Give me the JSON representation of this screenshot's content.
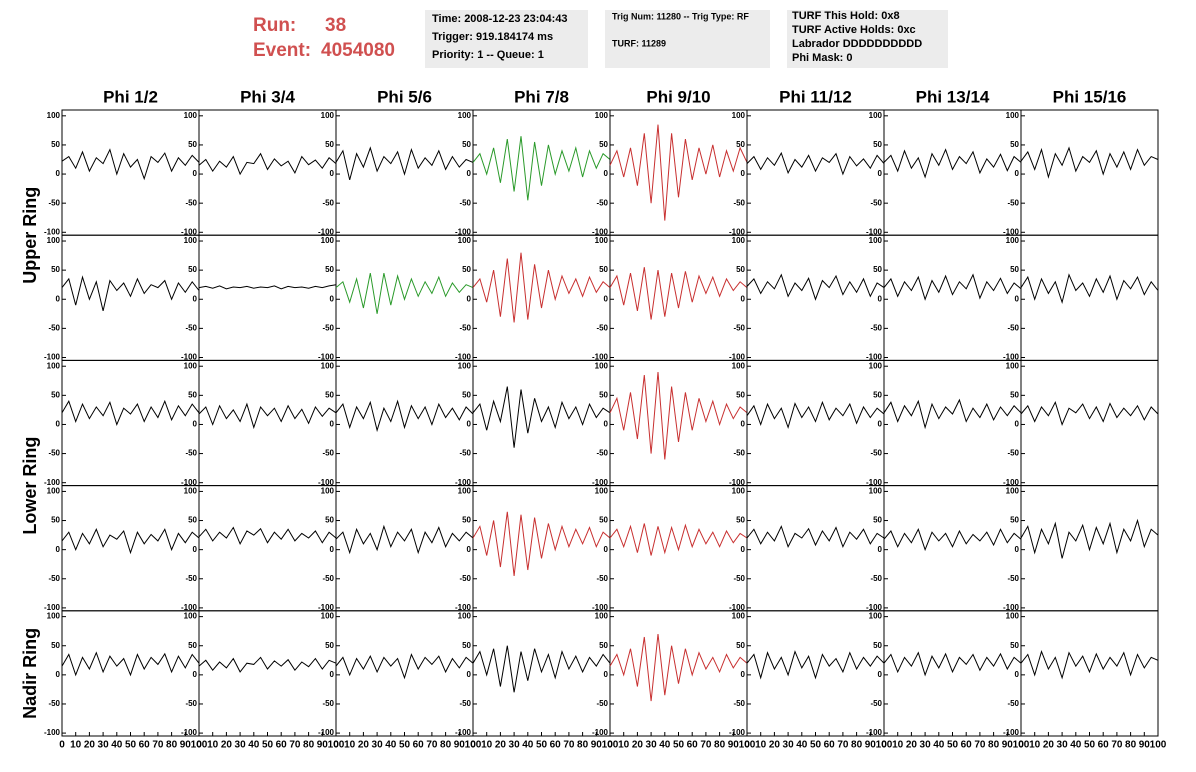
{
  "header": {
    "run_label": "Run:",
    "run": "38",
    "event_label": "Event:",
    "event": "4054080"
  },
  "info": [
    [
      "Time: 2008-12-23 23:04:43",
      "Trigger: 919.184174 ms",
      "Priority: 1 -- Queue: 1"
    ],
    [
      "Trig Num: 11280 -- Trig Type: RF",
      "TURF: 11289"
    ],
    [
      "TURF This Hold: 0x8",
      "TURF Active Holds: 0xc",
      "Labrador DDDDDDDDDD",
      "Phi Mask: 0"
    ]
  ],
  "chart_data": {
    "type": "line",
    "columns": [
      "Phi 1/2",
      "Phi 3/4",
      "Phi 5/6",
      "Phi 7/8",
      "Phi 9/10",
      "Phi 11/12",
      "Phi 13/14",
      "Phi 15/16"
    ],
    "rings": [
      "Upper Ring",
      "Lower Ring",
      "Nadir Ring"
    ],
    "xlim": [
      0,
      100
    ],
    "xticks": [
      0,
      10,
      20,
      30,
      40,
      50,
      60,
      70,
      80,
      90,
      100
    ],
    "ylim": [
      -105,
      110
    ],
    "yticks": [
      -100,
      -50,
      0,
      50,
      100
    ],
    "x": [
      0,
      5,
      10,
      15,
      20,
      25,
      30,
      35,
      40,
      45,
      50,
      55,
      60,
      65,
      70,
      75,
      80,
      85,
      90,
      95,
      100
    ],
    "panels": [
      [
        {
          "color": "#000000",
          "values": [
            22,
            30,
            10,
            38,
            5,
            28,
            18,
            42,
            0,
            35,
            12,
            25,
            -8,
            30,
            20,
            36,
            5,
            28,
            15,
            32,
            20
          ]
        },
        {
          "color": "#000000",
          "values": [
            15,
            25,
            5,
            22,
            12,
            30,
            0,
            20,
            18,
            35,
            8,
            26,
            14,
            22,
            2,
            30,
            16,
            24,
            10,
            28,
            18
          ]
        },
        {
          "color": "#000000",
          "values": [
            20,
            40,
            -10,
            35,
            12,
            45,
            5,
            30,
            18,
            38,
            0,
            42,
            10,
            28,
            15,
            40,
            8,
            30,
            12,
            25,
            20
          ]
        },
        {
          "color": "#2a9a2a",
          "values": [
            20,
            35,
            0,
            45,
            -15,
            60,
            -30,
            65,
            -45,
            55,
            -20,
            50,
            0,
            40,
            5,
            45,
            -5,
            40,
            10,
            35,
            25
          ]
        },
        {
          "color": "#c83030",
          "values": [
            15,
            40,
            -5,
            45,
            -20,
            70,
            -50,
            85,
            -80,
            70,
            -40,
            60,
            -10,
            45,
            0,
            50,
            -5,
            40,
            5,
            45,
            20
          ]
        },
        {
          "color": "#000000",
          "values": [
            18,
            30,
            8,
            28,
            15,
            36,
            2,
            25,
            12,
            32,
            5,
            28,
            20,
            35,
            0,
            30,
            14,
            26,
            10,
            32,
            18
          ]
        },
        {
          "color": "#000000",
          "values": [
            20,
            32,
            5,
            40,
            10,
            28,
            -5,
            35,
            15,
            42,
            8,
            30,
            18,
            38,
            2,
            26,
            12,
            34,
            6,
            30,
            20
          ]
        },
        {
          "color": "#000000",
          "values": [
            22,
            38,
            8,
            42,
            -5,
            35,
            15,
            45,
            5,
            30,
            20,
            40,
            0,
            35,
            12,
            38,
            8,
            42,
            15,
            30,
            25
          ]
        }
      ],
      [
        {
          "color": "#000000",
          "values": [
            20,
            35,
            -10,
            38,
            0,
            30,
            -20,
            32,
            15,
            28,
            5,
            35,
            10,
            25,
            20,
            32,
            0,
            28,
            12,
            30,
            15
          ]
        },
        {
          "color": "#000000",
          "values": [
            20,
            22,
            19,
            23,
            18,
            21,
            20,
            22,
            19,
            21,
            20,
            23,
            18,
            22,
            20,
            21,
            19,
            22,
            20,
            23,
            25
          ]
        },
        {
          "color": "#2a9a2a",
          "values": [
            20,
            30,
            -5,
            35,
            -15,
            45,
            -25,
            45,
            -10,
            40,
            0,
            35,
            5,
            30,
            10,
            38,
            5,
            28,
            12,
            25,
            20
          ]
        },
        {
          "color": "#c83030",
          "values": [
            20,
            35,
            -5,
            50,
            -30,
            70,
            -40,
            80,
            -35,
            60,
            -15,
            50,
            0,
            40,
            10,
            35,
            5,
            38,
            12,
            30,
            20
          ]
        },
        {
          "color": "#c83030",
          "values": [
            20,
            40,
            -10,
            45,
            -20,
            55,
            -35,
            50,
            -30,
            45,
            -15,
            48,
            -5,
            40,
            10,
            38,
            5,
            35,
            15,
            30,
            20
          ]
        },
        {
          "color": "#000000",
          "values": [
            22,
            35,
            10,
            30,
            18,
            42,
            5,
            28,
            15,
            36,
            0,
            32,
            20,
            40,
            8,
            30,
            12,
            35,
            5,
            28,
            20
          ]
        },
        {
          "color": "#000000",
          "values": [
            20,
            35,
            5,
            30,
            15,
            38,
            0,
            32,
            12,
            40,
            8,
            30,
            18,
            42,
            2,
            30,
            15,
            36,
            10,
            28,
            18
          ]
        },
        {
          "color": "#000000",
          "values": [
            20,
            38,
            0,
            35,
            10,
            30,
            -5,
            42,
            15,
            28,
            5,
            35,
            12,
            40,
            0,
            32,
            18,
            38,
            8,
            30,
            15
          ]
        }
      ],
      [
        {
          "color": "#000000",
          "values": [
            20,
            40,
            5,
            35,
            10,
            30,
            15,
            38,
            0,
            28,
            18,
            35,
            5,
            30,
            12,
            40,
            8,
            32,
            15,
            35,
            20
          ]
        },
        {
          "color": "#000000",
          "values": [
            18,
            30,
            0,
            32,
            10,
            25,
            5,
            35,
            -5,
            30,
            15,
            28,
            5,
            32,
            10,
            26,
            2,
            30,
            14,
            28,
            20
          ]
        },
        {
          "color": "#000000",
          "values": [
            20,
            35,
            -5,
            30,
            10,
            38,
            -10,
            28,
            5,
            40,
            -5,
            32,
            10,
            30,
            0,
            35,
            12,
            28,
            8,
            30,
            18
          ]
        },
        {
          "color": "#000000",
          "values": [
            20,
            35,
            -10,
            40,
            5,
            65,
            -40,
            60,
            -15,
            45,
            5,
            30,
            -5,
            38,
            10,
            30,
            0,
            35,
            12,
            28,
            20
          ]
        },
        {
          "color": "#c83030",
          "values": [
            20,
            45,
            -10,
            55,
            -25,
            85,
            -50,
            90,
            -60,
            65,
            -30,
            55,
            -10,
            45,
            5,
            40,
            0,
            35,
            10,
            30,
            20
          ]
        },
        {
          "color": "#000000",
          "values": [
            15,
            32,
            0,
            35,
            10,
            28,
            -5,
            36,
            12,
            30,
            5,
            38,
            8,
            28,
            15,
            35,
            2,
            30,
            12,
            28,
            18
          ]
        },
        {
          "color": "#000000",
          "values": [
            20,
            38,
            5,
            32,
            15,
            40,
            -5,
            35,
            10,
            30,
            18,
            42,
            5,
            28,
            12,
            35,
            8,
            30,
            15,
            32,
            20
          ]
        },
        {
          "color": "#000000",
          "values": [
            18,
            32,
            5,
            30,
            15,
            38,
            0,
            28,
            20,
            35,
            10,
            30,
            5,
            36,
            12,
            28,
            15,
            32,
            8,
            30,
            18
          ]
        }
      ],
      [
        {
          "color": "#000000",
          "values": [
            15,
            30,
            0,
            28,
            10,
            35,
            5,
            25,
            18,
            32,
            -5,
            30,
            10,
            26,
            15,
            35,
            0,
            28,
            12,
            30,
            20
          ]
        },
        {
          "color": "#000000",
          "values": [
            22,
            35,
            15,
            30,
            20,
            38,
            10,
            32,
            25,
            36,
            12,
            30,
            18,
            35,
            15,
            28,
            20,
            32,
            12,
            30,
            20
          ]
        },
        {
          "color": "#000000",
          "values": [
            18,
            30,
            -5,
            35,
            10,
            28,
            0,
            40,
            5,
            30,
            15,
            35,
            -5,
            30,
            12,
            38,
            5,
            28,
            15,
            30,
            20
          ]
        },
        {
          "color": "#c83030",
          "values": [
            20,
            40,
            -10,
            50,
            -30,
            65,
            -45,
            60,
            -35,
            55,
            -15,
            45,
            0,
            40,
            5,
            35,
            10,
            38,
            5,
            30,
            20
          ]
        },
        {
          "color": "#c83030",
          "values": [
            20,
            35,
            5,
            40,
            -5,
            45,
            -10,
            40,
            -5,
            38,
            0,
            42,
            5,
            35,
            10,
            30,
            5,
            32,
            12,
            28,
            20
          ]
        },
        {
          "color": "#000000",
          "values": [
            20,
            35,
            10,
            30,
            15,
            40,
            5,
            28,
            20,
            36,
            8,
            32,
            15,
            38,
            5,
            30,
            18,
            35,
            10,
            28,
            20
          ]
        },
        {
          "color": "#000000",
          "values": [
            18,
            32,
            5,
            28,
            12,
            35,
            0,
            30,
            15,
            28,
            5,
            32,
            10,
            26,
            15,
            30,
            8,
            35,
            12,
            28,
            18
          ]
        },
        {
          "color": "#000000",
          "values": [
            20,
            40,
            -5,
            35,
            10,
            45,
            -15,
            30,
            15,
            42,
            0,
            38,
            10,
            45,
            -5,
            35,
            15,
            50,
            5,
            35,
            25
          ]
        }
      ],
      [
        {
          "color": "#000000",
          "values": [
            15,
            35,
            0,
            30,
            10,
            38,
            5,
            32,
            15,
            28,
            0,
            35,
            10,
            30,
            18,
            36,
            5,
            32,
            12,
            35,
            20
          ]
        },
        {
          "color": "#000000",
          "values": [
            15,
            25,
            8,
            22,
            12,
            28,
            5,
            20,
            18,
            30,
            10,
            24,
            15,
            26,
            8,
            22,
            14,
            28,
            10,
            25,
            20
          ]
        },
        {
          "color": "#000000",
          "values": [
            15,
            30,
            0,
            28,
            10,
            32,
            5,
            30,
            15,
            28,
            -5,
            35,
            10,
            30,
            18,
            32,
            5,
            28,
            12,
            30,
            20
          ]
        },
        {
          "color": "#000000",
          "values": [
            20,
            40,
            0,
            45,
            -20,
            50,
            -30,
            40,
            -10,
            45,
            5,
            35,
            -5,
            40,
            10,
            32,
            5,
            30,
            15,
            35,
            20
          ]
        },
        {
          "color": "#c83030",
          "values": [
            15,
            35,
            0,
            45,
            -20,
            65,
            -45,
            70,
            -35,
            50,
            -15,
            45,
            0,
            38,
            10,
            30,
            5,
            35,
            12,
            30,
            20
          ]
        },
        {
          "color": "#000000",
          "values": [
            20,
            35,
            -5,
            38,
            10,
            30,
            0,
            40,
            12,
            32,
            -5,
            35,
            15,
            28,
            5,
            38,
            10,
            30,
            15,
            32,
            20
          ]
        },
        {
          "color": "#000000",
          "values": [
            20,
            35,
            5,
            30,
            15,
            38,
            0,
            32,
            12,
            36,
            5,
            30,
            18,
            35,
            8,
            30,
            15,
            36,
            10,
            30,
            20
          ]
        },
        {
          "color": "#000000",
          "values": [
            20,
            35,
            0,
            40,
            10,
            30,
            -5,
            38,
            15,
            32,
            5,
            36,
            10,
            30,
            15,
            38,
            0,
            35,
            12,
            30,
            25
          ]
        }
      ]
    ]
  }
}
